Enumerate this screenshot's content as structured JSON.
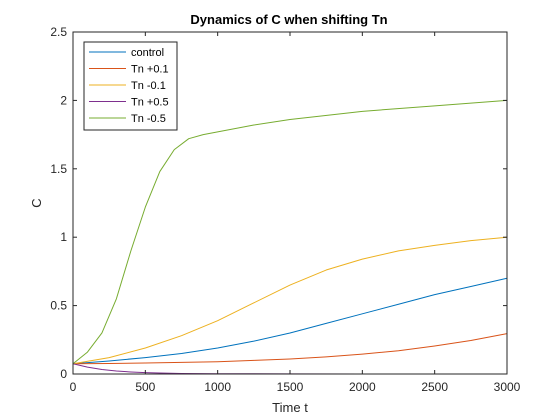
{
  "chart_data": {
    "type": "line",
    "title": "Dynamics of C when shifting Tn",
    "xlabel": "Time t",
    "ylabel": "C",
    "xlim": [
      0,
      3000
    ],
    "ylim": [
      0,
      2.5
    ],
    "xticks": [
      0,
      500,
      1000,
      1500,
      2000,
      2500,
      3000
    ],
    "yticks": [
      0,
      0.5,
      1,
      1.5,
      2,
      2.5
    ],
    "grid": false,
    "legend_position": "top-left",
    "series": [
      {
        "name": "control",
        "color": "#0072BD",
        "x": [
          0,
          250,
          500,
          750,
          1000,
          1250,
          1500,
          1750,
          2000,
          2250,
          2500,
          2750,
          3000
        ],
        "y": [
          0.075,
          0.095,
          0.12,
          0.15,
          0.19,
          0.24,
          0.3,
          0.37,
          0.44,
          0.51,
          0.58,
          0.64,
          0.7
        ]
      },
      {
        "name": "Tn +0.1",
        "color": "#D95319",
        "x": [
          0,
          250,
          500,
          750,
          1000,
          1250,
          1500,
          1750,
          2000,
          2250,
          2500,
          2750,
          3000
        ],
        "y": [
          0.075,
          0.077,
          0.08,
          0.085,
          0.09,
          0.1,
          0.11,
          0.125,
          0.145,
          0.17,
          0.205,
          0.245,
          0.295
        ]
      },
      {
        "name": "Tn -0.1",
        "color": "#EDB120",
        "x": [
          0,
          250,
          500,
          750,
          1000,
          1250,
          1500,
          1750,
          2000,
          2250,
          2500,
          2750,
          3000
        ],
        "y": [
          0.075,
          0.12,
          0.19,
          0.28,
          0.39,
          0.52,
          0.65,
          0.76,
          0.84,
          0.9,
          0.94,
          0.975,
          1.0
        ]
      },
      {
        "name": "Tn +0.5",
        "color": "#7E2F8E",
        "x": [
          0,
          100,
          200,
          300,
          400,
          500,
          600,
          750,
          1000,
          1500,
          2000,
          2500,
          3000
        ],
        "y": [
          0.075,
          0.05,
          0.033,
          0.022,
          0.015,
          0.01,
          0.007,
          0.004,
          0.002,
          0.001,
          0.0,
          0.0,
          0.0
        ]
      },
      {
        "name": "Tn -0.5",
        "color": "#77AC30",
        "x": [
          0,
          100,
          200,
          300,
          400,
          500,
          600,
          700,
          800,
          900,
          1000,
          1250,
          1500,
          2000,
          2500,
          3000
        ],
        "y": [
          0.075,
          0.16,
          0.3,
          0.55,
          0.9,
          1.22,
          1.48,
          1.64,
          1.72,
          1.75,
          1.77,
          1.82,
          1.86,
          1.92,
          1.96,
          2.0
        ]
      }
    ]
  }
}
